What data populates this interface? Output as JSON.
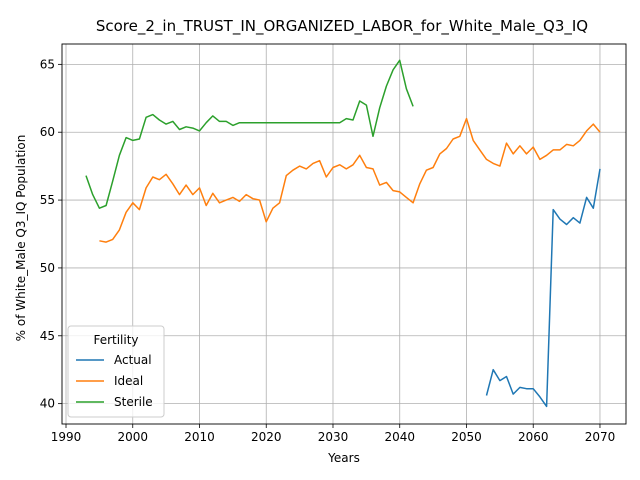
{
  "chart_data": {
    "type": "line",
    "title": "Score_2_in_TRUST_IN_ORGANIZED_LABOR_for_White_Male_Q3_IQ",
    "xlabel": "Years",
    "ylabel": "% of White_Male Q3_IQ Population",
    "xlim": [
      1989.4,
      2073.9
    ],
    "ylim": [
      38.5,
      66.5
    ],
    "xticks": [
      1990,
      2000,
      2010,
      2020,
      2030,
      2040,
      2050,
      2060,
      2070
    ],
    "yticks": [
      40,
      45,
      50,
      55,
      60,
      65
    ],
    "grid": true,
    "legend": {
      "title": "Fertility",
      "placement": "lower-left"
    },
    "series": [
      {
        "name": "Actual",
        "color": "#1f77b4",
        "x": [
          2053,
          2054,
          2055,
          2056,
          2057,
          2058,
          2059,
          2060,
          2061,
          2062,
          2063,
          2064,
          2065,
          2066,
          2067,
          2068,
          2069,
          2070
        ],
        "y": [
          40.6,
          42.5,
          41.7,
          42.0,
          40.7,
          41.2,
          41.1,
          41.1,
          40.5,
          39.8,
          54.3,
          53.6,
          53.2,
          53.7,
          53.3,
          55.2,
          54.4,
          57.3
        ]
      },
      {
        "name": "Ideal",
        "color": "#ff7f0e",
        "x": [
          1995,
          1996,
          1997,
          1998,
          1999,
          2000,
          2001,
          2002,
          2003,
          2004,
          2005,
          2006,
          2007,
          2008,
          2009,
          2010,
          2011,
          2012,
          2013,
          2014,
          2015,
          2016,
          2017,
          2018,
          2019,
          2020,
          2021,
          2022,
          2023,
          2024,
          2025,
          2026,
          2027,
          2028,
          2029,
          2030,
          2031,
          2032,
          2033,
          2034,
          2035,
          2036,
          2037,
          2038,
          2039,
          2040,
          2041,
          2042,
          2043,
          2044,
          2045,
          2046,
          2047,
          2048,
          2049,
          2050,
          2051,
          2052,
          2053,
          2054,
          2055,
          2056,
          2057,
          2058,
          2059,
          2060,
          2061,
          2062,
          2063,
          2064,
          2065,
          2066,
          2067,
          2068,
          2069,
          2070
        ],
        "y": [
          52.0,
          51.9,
          52.1,
          52.8,
          54.1,
          54.8,
          54.3,
          55.9,
          56.7,
          56.5,
          56.9,
          56.2,
          55.4,
          56.1,
          55.4,
          55.9,
          54.6,
          55.5,
          54.8,
          55.0,
          55.2,
          54.9,
          55.4,
          55.1,
          55.0,
          53.4,
          54.4,
          54.8,
          56.8,
          57.2,
          57.5,
          57.3,
          57.7,
          57.9,
          56.7,
          57.4,
          57.6,
          57.3,
          57.6,
          58.3,
          57.4,
          57.3,
          56.1,
          56.3,
          55.7,
          55.6,
          55.2,
          54.8,
          56.2,
          57.2,
          57.4,
          58.4,
          58.8,
          59.5,
          59.7,
          61.0,
          59.4,
          58.7,
          58.0,
          57.7,
          57.5,
          59.2,
          58.4,
          59.0,
          58.4,
          58.9,
          58.0,
          58.3,
          58.7,
          58.7,
          59.1,
          59.0,
          59.4,
          60.1,
          60.6,
          60.0
        ]
      },
      {
        "name": "Sterile",
        "color": "#2ca02c",
        "x": [
          1993,
          1994,
          1995,
          1996,
          1997,
          1998,
          1999,
          2000,
          2001,
          2002,
          2003,
          2004,
          2005,
          2006,
          2007,
          2008,
          2009,
          2010,
          2011,
          2012,
          2013,
          2014,
          2015,
          2016,
          2017,
          2018,
          2019,
          2020,
          2021,
          2022,
          2023,
          2024,
          2025,
          2026,
          2027,
          2028,
          2029,
          2030,
          2031,
          2032,
          2033,
          2034,
          2035,
          2036,
          2037,
          2038,
          2039,
          2040,
          2041,
          2042
        ],
        "y": [
          56.8,
          55.4,
          54.4,
          54.6,
          56.4,
          58.3,
          59.6,
          59.4,
          59.5,
          61.1,
          61.3,
          60.9,
          60.6,
          60.8,
          60.2,
          60.4,
          60.3,
          60.1,
          60.7,
          61.2,
          60.8,
          60.8,
          60.5,
          60.7,
          60.7,
          60.7,
          60.7,
          60.7,
          60.7,
          60.7,
          60.7,
          60.7,
          60.7,
          60.7,
          60.7,
          60.7,
          60.7,
          60.7,
          60.7,
          61.0,
          60.9,
          62.3,
          62.0,
          59.7,
          61.8,
          63.4,
          64.6,
          65.3,
          63.2,
          61.9
        ]
      }
    ]
  }
}
